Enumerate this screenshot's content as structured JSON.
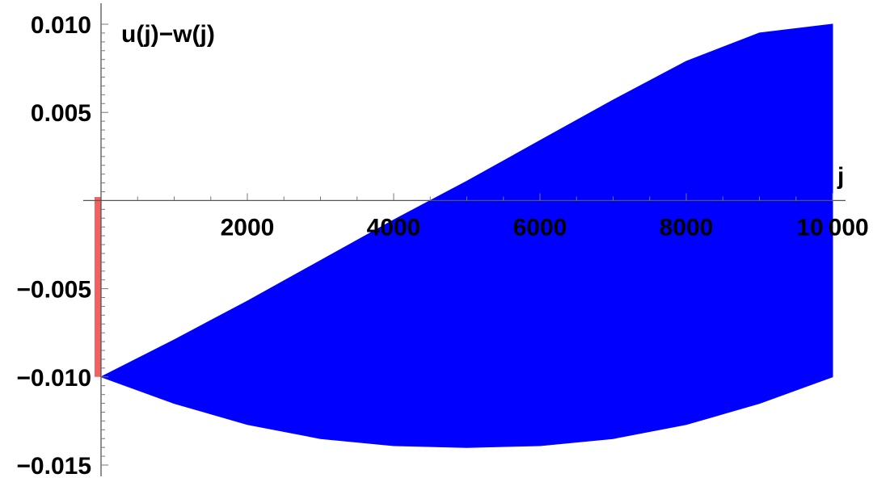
{
  "chart_data": {
    "type": "area",
    "xlabel": "j",
    "ylabel": "u(j)−w(j)",
    "xlim": [
      0,
      10000
    ],
    "ylim": [
      -0.015,
      0.01
    ],
    "x_ticks": [
      {
        "value": 2000,
        "label": "2000"
      },
      {
        "value": 4000,
        "label": "4000"
      },
      {
        "value": 6000,
        "label": "6000"
      },
      {
        "value": 8000,
        "label": "8000"
      },
      {
        "value": 10000,
        "label": "10 000"
      }
    ],
    "y_ticks": [
      {
        "value": 0.01,
        "label": "0.010"
      },
      {
        "value": 0.005,
        "label": "0.005"
      },
      {
        "value": -0.005,
        "label": "−0.005"
      },
      {
        "value": -0.01,
        "label": "−0.010"
      },
      {
        "value": -0.015,
        "label": "−0.015"
      }
    ],
    "grid": false,
    "series": [
      {
        "color": "#0000ff",
        "fill": "band",
        "upper": {
          "x": [
            0,
            1000,
            2000,
            3000,
            4000,
            5000,
            6000,
            7000,
            8000,
            9000,
            10000
          ],
          "y": [
            -0.01,
            -0.0079,
            -0.0057,
            -0.0034,
            -0.0011,
            0.0011,
            0.0034,
            0.0057,
            0.0079,
            0.0095,
            0.01
          ]
        },
        "lower": {
          "x": [
            0,
            1000,
            2000,
            3000,
            4000,
            5000,
            6000,
            7000,
            8000,
            9000,
            10000
          ],
          "y": [
            -0.01,
            -0.0115,
            -0.0127,
            -0.0135,
            -0.0139,
            -0.014,
            -0.0139,
            -0.0135,
            -0.0127,
            -0.0115,
            -0.01
          ]
        }
      }
    ],
    "highlight": {
      "color": "#f05050",
      "x": [
        0,
        70
      ],
      "y": [
        -0.01,
        0.0002
      ]
    }
  }
}
